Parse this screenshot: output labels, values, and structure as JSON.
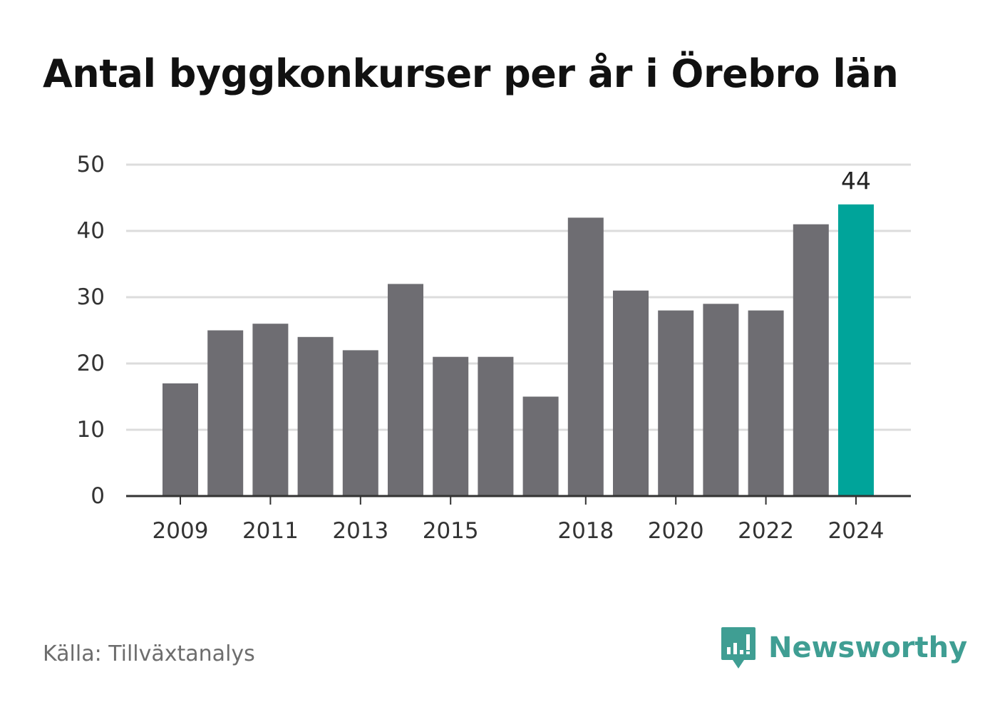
{
  "chart_data": {
    "type": "bar",
    "title": "Antal byggkonkurser per år i Örebro län",
    "categories": [
      "2009",
      "2010",
      "2011",
      "2012",
      "2013",
      "2014",
      "2015",
      "2016",
      "2017",
      "2018",
      "2019",
      "2020",
      "2021",
      "2022",
      "2023",
      "2024"
    ],
    "x_tick_labels": [
      "2009",
      "2011",
      "2013",
      "2015",
      "2018",
      "2020",
      "2022",
      "2024"
    ],
    "values": [
      17,
      25,
      26,
      24,
      22,
      32,
      21,
      21,
      15,
      42,
      31,
      28,
      29,
      28,
      41,
      44
    ],
    "highlight": {
      "category": "2024",
      "label": "44"
    },
    "ylim": [
      0,
      50
    ],
    "y_ticks": [
      0,
      10,
      20,
      30,
      40,
      50
    ],
    "xlabel": "",
    "ylabel": "",
    "grid": true,
    "legend": "none"
  },
  "colors": {
    "bar": "#6e6d72",
    "highlight": "#00a49a",
    "grid": "#dcdcdc",
    "axis": "#333333",
    "brand": "#3f9e93"
  },
  "footer": {
    "source": "Källa: Tillväxtanalys",
    "brand_name": "Newsworthy",
    "brand_icon": "newsworthy-logo-icon"
  }
}
